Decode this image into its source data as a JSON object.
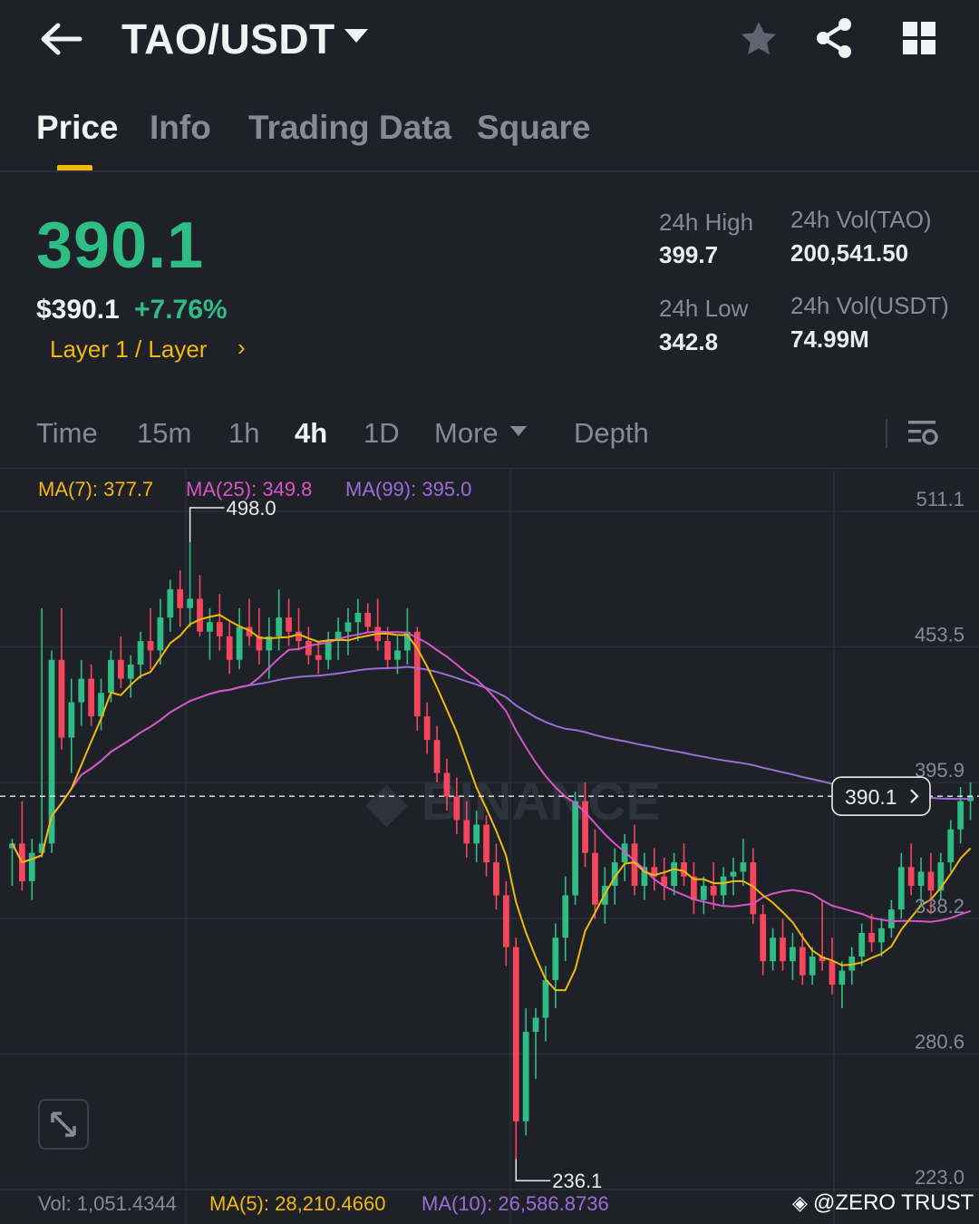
{
  "header": {
    "pair": "TAO/USDT",
    "icons": [
      "back-arrow-icon",
      "caret-down-icon",
      "star-icon",
      "share-icon",
      "grid-icon"
    ]
  },
  "tabs": [
    {
      "label": "Price",
      "active": true
    },
    {
      "label": "Info",
      "active": false
    },
    {
      "label": "Trading Data",
      "active": false
    },
    {
      "label": "Square",
      "active": false
    }
  ],
  "ticker": {
    "last_price": "390.1",
    "usd_price": "$390.1",
    "change": "+7.76%",
    "tag": "Layer 1 / Layer",
    "high_label": "24h High",
    "high": "399.7",
    "low_label": "24h Low",
    "low": "342.8",
    "vol_base_label": "24h Vol(TAO)",
    "vol_base": "200,541.50",
    "vol_quote_label": "24h Vol(USDT)",
    "vol_quote": "74.99M"
  },
  "timeframes": {
    "items": [
      {
        "label": "Time",
        "active": false
      },
      {
        "label": "15m",
        "active": false
      },
      {
        "label": "1h",
        "active": false
      },
      {
        "label": "4h",
        "active": true
      },
      {
        "label": "1D",
        "active": false
      },
      {
        "label": "More",
        "active": false
      },
      {
        "label": "Depth",
        "active": false
      }
    ]
  },
  "colors": {
    "up": "#2ebd85",
    "down": "#f6465d",
    "ma7": "#f0b90b",
    "ma25": "#d555c6",
    "ma99": "#9b6dd7",
    "accent": "#f0b90b"
  },
  "indicators": {
    "ma7": "MA(7): 377.7",
    "ma25": "MA(25): 349.8",
    "ma99": "MA(99): 395.0",
    "vol": "Vol: 1,051.4344",
    "vol_ma5": "MA(5): 28,210.4660",
    "vol_ma10": "MA(10): 26,586.8736"
  },
  "watermark": "@ZERO TRUST",
  "chart_data": {
    "type": "candlestick",
    "y_ticks": [
      "511.1",
      "453.5",
      "395.9",
      "338.2",
      "280.6",
      "223.0"
    ],
    "y_range": [
      223.0,
      511.1
    ],
    "current_price": "390.1",
    "high_marker": "498.0",
    "low_marker": "236.1",
    "candles": [
      [
        368,
        372,
        352,
        370
      ],
      [
        370,
        388,
        350,
        354
      ],
      [
        354,
        372,
        346,
        366
      ],
      [
        366,
        470,
        364,
        370
      ],
      [
        370,
        452,
        366,
        448
      ],
      [
        448,
        470,
        410,
        415
      ],
      [
        415,
        440,
        400,
        430
      ],
      [
        430,
        448,
        420,
        440
      ],
      [
        440,
        446,
        420,
        424
      ],
      [
        424,
        440,
        418,
        434
      ],
      [
        434,
        452,
        430,
        448
      ],
      [
        448,
        458,
        436,
        440
      ],
      [
        440,
        450,
        432,
        446
      ],
      [
        446,
        460,
        440,
        456
      ],
      [
        456,
        470,
        444,
        452
      ],
      [
        452,
        474,
        446,
        466
      ],
      [
        466,
        482,
        460,
        478
      ],
      [
        478,
        486,
        462,
        470
      ],
      [
        470,
        498,
        462,
        474
      ],
      [
        474,
        484,
        458,
        460
      ],
      [
        460,
        470,
        448,
        464
      ],
      [
        464,
        476,
        452,
        458
      ],
      [
        458,
        464,
        442,
        448
      ],
      [
        448,
        470,
        444,
        462
      ],
      [
        462,
        474,
        454,
        458
      ],
      [
        458,
        470,
        446,
        452
      ],
      [
        452,
        466,
        440,
        458
      ],
      [
        458,
        478,
        452,
        466
      ],
      [
        466,
        474,
        454,
        460
      ],
      [
        460,
        470,
        452,
        456
      ],
      [
        456,
        462,
        446,
        450
      ],
      [
        450,
        456,
        442,
        448
      ],
      [
        448,
        460,
        444,
        456
      ],
      [
        456,
        466,
        448,
        460
      ],
      [
        460,
        470,
        450,
        464
      ],
      [
        464,
        474,
        456,
        468
      ],
      [
        468,
        472,
        460,
        462
      ],
      [
        462,
        474,
        452,
        456
      ],
      [
        456,
        462,
        444,
        448
      ],
      [
        448,
        458,
        442,
        452
      ],
      [
        452,
        470,
        446,
        460
      ],
      [
        460,
        462,
        418,
        424
      ],
      [
        424,
        430,
        408,
        414
      ],
      [
        414,
        420,
        396,
        400
      ],
      [
        400,
        406,
        384,
        390
      ],
      [
        390,
        398,
        374,
        380
      ],
      [
        380,
        388,
        364,
        370
      ],
      [
        370,
        384,
        362,
        378
      ],
      [
        378,
        382,
        356,
        362
      ],
      [
        362,
        370,
        342,
        348
      ],
      [
        348,
        354,
        318,
        326
      ],
      [
        326,
        330,
        236,
        252
      ],
      [
        252,
        300,
        246,
        290
      ],
      [
        290,
        300,
        270,
        296
      ],
      [
        296,
        318,
        286,
        312
      ],
      [
        312,
        336,
        300,
        330
      ],
      [
        330,
        356,
        320,
        348
      ],
      [
        348,
        392,
        344,
        388
      ],
      [
        388,
        396,
        360,
        366
      ],
      [
        366,
        376,
        338,
        344
      ],
      [
        344,
        360,
        336,
        352
      ],
      [
        352,
        368,
        344,
        362
      ],
      [
        362,
        374,
        354,
        370
      ],
      [
        370,
        378,
        348,
        352
      ],
      [
        352,
        366,
        346,
        360
      ],
      [
        360,
        368,
        350,
        356
      ],
      [
        356,
        364,
        346,
        352
      ],
      [
        352,
        366,
        348,
        362
      ],
      [
        362,
        370,
        352,
        356
      ],
      [
        356,
        362,
        340,
        346
      ],
      [
        346,
        356,
        340,
        352
      ],
      [
        352,
        362,
        342,
        348
      ],
      [
        348,
        360,
        344,
        356
      ],
      [
        356,
        364,
        348,
        358
      ],
      [
        358,
        372,
        352,
        362
      ],
      [
        362,
        368,
        336,
        340
      ],
      [
        340,
        344,
        314,
        320
      ],
      [
        320,
        334,
        316,
        330
      ],
      [
        330,
        338,
        316,
        320
      ],
      [
        320,
        332,
        312,
        326
      ],
      [
        326,
        332,
        310,
        314
      ],
      [
        314,
        326,
        310,
        322
      ],
      [
        322,
        346,
        316,
        320
      ],
      [
        320,
        330,
        306,
        310
      ],
      [
        310,
        320,
        300,
        316
      ],
      [
        316,
        326,
        310,
        322
      ],
      [
        322,
        336,
        318,
        332
      ],
      [
        332,
        340,
        324,
        328
      ],
      [
        328,
        338,
        322,
        334
      ],
      [
        334,
        346,
        330,
        342
      ],
      [
        342,
        366,
        338,
        360
      ],
      [
        360,
        370,
        348,
        352
      ],
      [
        352,
        364,
        344,
        358
      ],
      [
        358,
        366,
        340,
        350
      ],
      [
        350,
        366,
        346,
        362
      ],
      [
        362,
        380,
        358,
        376
      ],
      [
        376,
        394,
        370,
        388
      ],
      [
        388,
        396,
        380,
        390
      ]
    ]
  }
}
